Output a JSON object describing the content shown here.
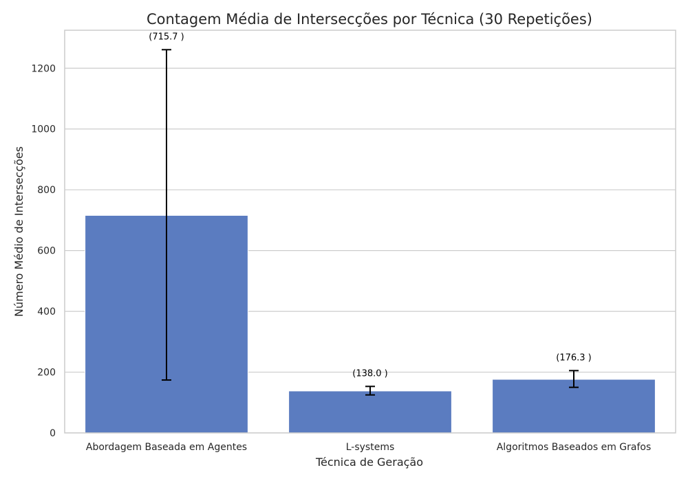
{
  "chart_data": {
    "type": "bar",
    "title": "Contagem Média de Intersecções por Técnica (30 Repetições)",
    "xlabel": "Técnica de Geração",
    "ylabel": "Número Médio de Intersecções",
    "categories": [
      "Abordagem Baseada em Agentes",
      "L-systems",
      "Algoritmos Baseados em Grafos"
    ],
    "values": [
      715.7,
      138.0,
      176.3
    ],
    "error_low": [
      174,
      125,
      150
    ],
    "error_high": [
      1261,
      153,
      205
    ],
    "data_labels": [
      "(715.7 )",
      "(138.0 )",
      "(176.3 )"
    ],
    "ylim": [
      0,
      1325
    ],
    "yticks": [
      0,
      200,
      400,
      600,
      800,
      1000,
      1200
    ],
    "grid": true,
    "bar_color": "#5b7cc0",
    "grid_color": "#cccccc",
    "spine_color": "#cccccc",
    "error_color": "#000000"
  }
}
